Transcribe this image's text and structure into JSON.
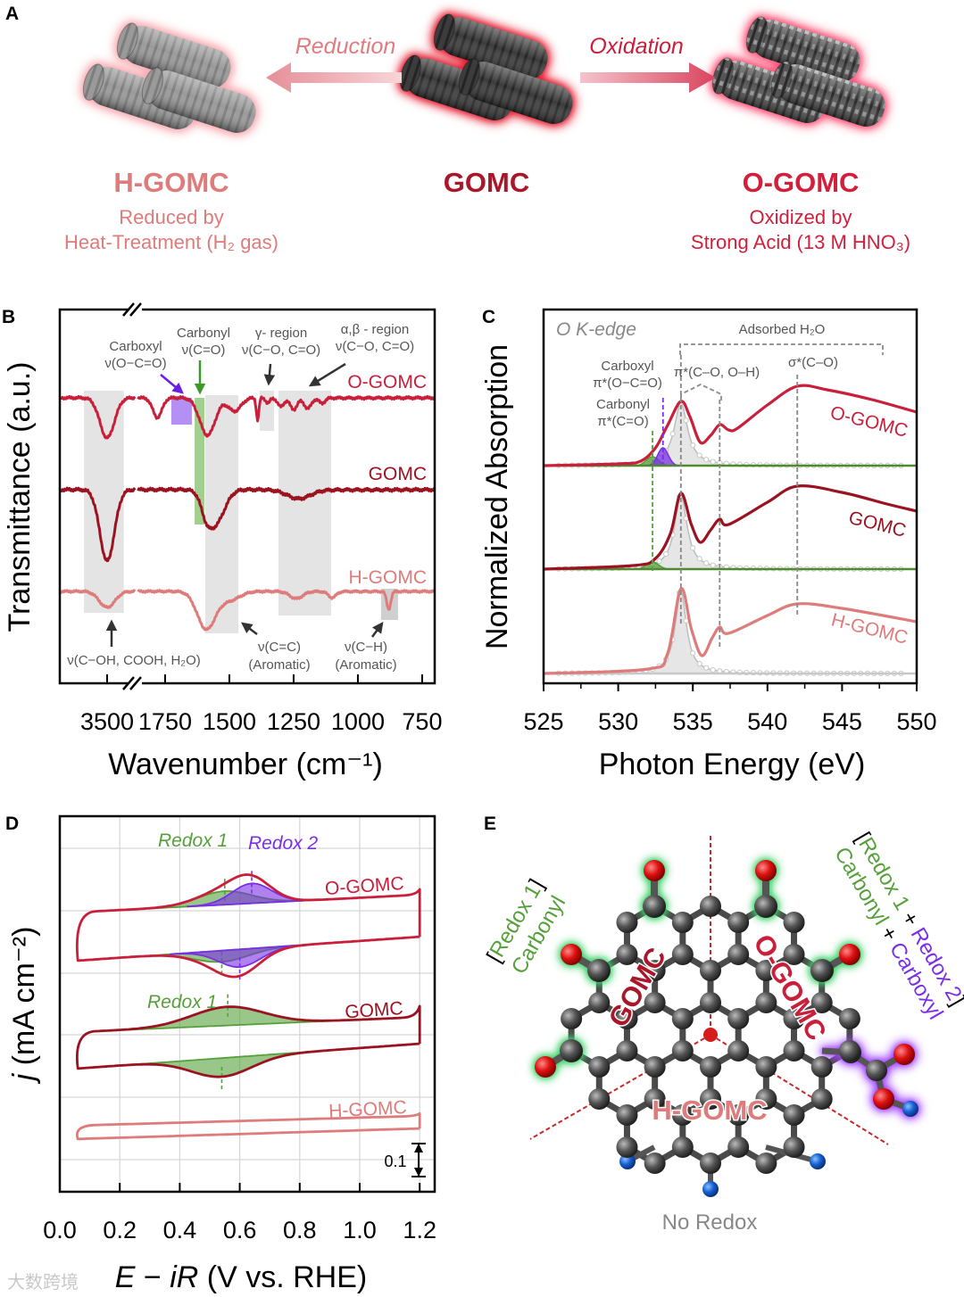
{
  "panel_labels": {
    "a": "A",
    "b": "B",
    "c": "C",
    "d": "D",
    "e": "E"
  },
  "colors": {
    "o_gomc": "#c91f3b",
    "gomc": "#9b1320",
    "h_gomc": "#de7b7b",
    "carbonyl": "#55a03a",
    "carboxyl": "#7a2ee6",
    "band": "#e4e4e4",
    "annotation": "#555555"
  },
  "panel_a": {
    "reduction_label": "Reduction",
    "oxidation_label": "Oxidation",
    "materials": [
      {
        "name": "H-GOMC",
        "desc1": "Reduced by",
        "desc2": "Heat-Treatment (H₂ gas)"
      },
      {
        "name": "GOMC"
      },
      {
        "name": "O-GOMC",
        "desc1": "Oxidized by",
        "desc2": "Strong Acid (13 M HNO₃)"
      }
    ]
  },
  "chart_data": [
    {
      "panel": "B",
      "type": "line",
      "xlabel": "Wavenumber (cm⁻¹)",
      "ylabel": "Transmittance (a.u.)",
      "x_segments": [
        [
          3680,
          3390
        ],
        [
          1855,
          700
        ]
      ],
      "x_ticks": [
        "3500",
        "1750",
        "1500",
        "1250",
        "1000",
        "750"
      ],
      "x_tick_values": [
        3500,
        1750,
        1500,
        1250,
        1000,
        750
      ],
      "series": [
        {
          "name": "O-GOMC",
          "offset": 3.2,
          "noise": 0.01,
          "peaks": [
            [
              3500,
              0.45,
              28
            ],
            [
              1780,
              0.22,
              18
            ],
            [
              1585,
              0.42,
              30
            ],
            [
              1480,
              0.15,
              25
            ],
            [
              1390,
              0.25,
              5
            ],
            [
              1350,
              0.06,
              8
            ],
            [
              1300,
              0.1,
              12
            ],
            [
              1250,
              0.13,
              14
            ],
            [
              1195,
              0.12,
              14
            ],
            [
              1140,
              0.06,
              12
            ]
          ]
        },
        {
          "name": "GOMC",
          "offset": 2.17,
          "noise": 0.012,
          "peaks": [
            [
              3500,
              0.8,
              28
            ],
            [
              1590,
              0.15,
              20
            ],
            [
              1555,
              0.38,
              35
            ],
            [
              1230,
              0.1,
              45
            ]
          ]
        },
        {
          "name": "H-GOMC",
          "offset": 1.03,
          "noise": 0.008,
          "peaks": [
            [
              3500,
              0.18,
              30
            ],
            [
              1590,
              0.42,
              35
            ],
            [
              1500,
              0.1,
              40
            ],
            [
              1240,
              0.08,
              25
            ],
            [
              1100,
              0.07,
              15
            ],
            [
              880,
              0.2,
              8
            ]
          ]
        }
      ],
      "bands": [
        {
          "name": "OH",
          "range": [
            3590,
            3435
          ],
          "ylim": [
            0.79,
            3.28
          ],
          "kind": "gray"
        },
        {
          "name": "CC",
          "range": [
            1594,
            1465
          ],
          "ylim": [
            0.56,
            3.23
          ],
          "kind": "gray"
        },
        {
          "name": "gamma",
          "range": [
            1382,
            1326
          ],
          "ylim": [
            2.83,
            3.28
          ],
          "kind": "gray"
        },
        {
          "name": "alpha-beta",
          "range": [
            1309,
            1104
          ],
          "ylim": [
            0.76,
            3.28
          ],
          "kind": "gray"
        },
        {
          "name": "CH",
          "range": [
            910,
            844
          ],
          "ylim": [
            0.71,
            1.06
          ],
          "kind": "darkgray"
        },
        {
          "name": "carboxyl",
          "range": [
            1726,
            1646
          ],
          "ylim": [
            2.9,
            3.2
          ],
          "kind": "carboxyl"
        },
        {
          "name": "carbonyl",
          "range": [
            1635,
            1597
          ],
          "ylim": [
            1.78,
            3.2
          ],
          "kind": "carbonyl"
        }
      ],
      "annotations": {
        "carboxyl": [
          "Carboxyl",
          "ν(O−C=O)"
        ],
        "carbonyl": [
          "Carbonyl",
          "ν(C=O)"
        ],
        "gamma": [
          "γ- region",
          "ν(C−O, C=O)"
        ],
        "alphabeta": [
          "α,β - region",
          "ν(C−O, C=O)"
        ],
        "oh": "ν(C−OH, COOH, H₂O)",
        "cc": [
          "ν(C=C)",
          "(Aromatic)"
        ],
        "ch": [
          "ν(C−H)",
          "(Aromatic)"
        ]
      }
    },
    {
      "panel": "C",
      "type": "line",
      "xlabel": "Photon Energy (eV)",
      "ylabel": "Normalized Absorption",
      "xlim": [
        525,
        550
      ],
      "x_ticks": [
        "525",
        "530",
        "535",
        "540",
        "545",
        "550"
      ],
      "x_tick_values": [
        525,
        530,
        535,
        540,
        545,
        550
      ],
      "inset_label": "O K-edge",
      "series": [
        {
          "name": "O-GOMC",
          "offset": 2.44,
          "points": [
            [
              525,
              0
            ],
            [
              530,
              0.02
            ],
            [
              531.5,
              0.05
            ],
            [
              532.5,
              0.2
            ],
            [
              533.3,
              0.45
            ],
            [
              534.2,
              0.72
            ],
            [
              534.8,
              0.55
            ],
            [
              535.5,
              0.26
            ],
            [
              536.2,
              0.34
            ],
            [
              536.8,
              0.46
            ],
            [
              537.4,
              0.4
            ],
            [
              538,
              0.42
            ],
            [
              540,
              0.68
            ],
            [
              542,
              0.89
            ],
            [
              544,
              0.85
            ],
            [
              547,
              0.74
            ],
            [
              550,
              0.6
            ]
          ],
          "fit_main": [
            534.2,
            0.7,
            0.55
          ],
          "fit_carbonyl": [
            532.3,
            0.1,
            0.4
          ],
          "fit_carboxyl": [
            533,
            0.2,
            0.35
          ]
        },
        {
          "name": "GOMC",
          "offset": 1.28,
          "points": [
            [
              525,
              0
            ],
            [
              531,
              0.04
            ],
            [
              532.5,
              0.12
            ],
            [
              533.5,
              0.4
            ],
            [
              534.2,
              0.85
            ],
            [
              534.9,
              0.5
            ],
            [
              535.5,
              0.3
            ],
            [
              536.2,
              0.44
            ],
            [
              536.8,
              0.56
            ],
            [
              537.4,
              0.5
            ],
            [
              540,
              0.75
            ],
            [
              542,
              0.93
            ],
            [
              545,
              0.86
            ],
            [
              548,
              0.73
            ],
            [
              550,
              0.65
            ]
          ],
          "fit_main": [
            534.2,
            0.83,
            0.5
          ],
          "fit_carbonyl": [
            532.3,
            0.08,
            0.4
          ]
        },
        {
          "name": "H-GOMC",
          "offset": 0.11,
          "points": [
            [
              525,
              0
            ],
            [
              532,
              0.05
            ],
            [
              533.3,
              0.22
            ],
            [
              534.2,
              0.95
            ],
            [
              534.9,
              0.5
            ],
            [
              535.6,
              0.2
            ],
            [
              536.3,
              0.4
            ],
            [
              536.8,
              0.52
            ],
            [
              537.4,
              0.45
            ],
            [
              540,
              0.65
            ],
            [
              542,
              0.78
            ],
            [
              545,
              0.73
            ],
            [
              550,
              0.58
            ]
          ],
          "fit_main": [
            534.2,
            0.93,
            0.45
          ]
        }
      ],
      "markers_eV": {
        "carbonyl": 532.3,
        "carboxyl": 533,
        "pi_star": 534.2,
        "pi_star_2": 536.8,
        "sigma_star": 542
      },
      "annotations": {
        "adsorbed": "Adsorbed H₂O",
        "carboxyl": [
          "Carboxyl",
          "π*(O−C=O)"
        ],
        "carbonyl": [
          "Carbonyl",
          "π*(C=O)"
        ],
        "pi_star": "π*(C–O, O–H)",
        "sigma_star": "σ*(C–O)"
      }
    },
    {
      "panel": "D",
      "type": "line",
      "xlabel_parts": [
        "E",
        " − ",
        "iR",
        " (V vs. RHE)"
      ],
      "ylabel_parts": [
        "j",
        " (mA cm⁻²)"
      ],
      "xlim": [
        0,
        1.25
      ],
      "x_ticks": [
        "0.0",
        "0.2",
        "0.4",
        "0.6",
        "0.8",
        "1.0",
        "1.2"
      ],
      "x_tick_values": [
        0,
        0.2,
        0.4,
        0.6,
        0.8,
        1.0,
        1.2
      ],
      "grid": true,
      "scale_bar": "0.1",
      "series": [
        {
          "name": "O-GOMC",
          "upper": [
            0.87,
            0.925
          ],
          "top": 0.942,
          "lower": [
            0.719,
            0.794
          ],
          "anodic": [
            {
              "type": "Redox 1",
              "E": 0.55,
              "j": 0.042,
              "sigma": 0.09
            },
            {
              "type": "Redox 2",
              "E": 0.64,
              "j": 0.062,
              "sigma": 0.065
            }
          ],
          "cathodic": [
            {
              "type": "Redox 1",
              "E": 0.54,
              "j": 0.035,
              "sigma": 0.09
            },
            {
              "type": "Redox 2",
              "E": 0.6,
              "j": 0.055,
              "sigma": 0.07
            }
          ]
        },
        {
          "name": "GOMC",
          "upper": [
            0.497,
            0.544
          ],
          "top": 0.578,
          "lower": [
            0.383,
            0.461
          ],
          "anodic": [
            {
              "type": "Redox 1",
              "E": 0.56,
              "j": 0.058,
              "sigma": 0.12
            }
          ],
          "cathodic": [
            {
              "type": "Redox 1",
              "E": 0.54,
              "j": 0.058,
              "sigma": 0.1
            }
          ]
        },
        {
          "name": "H-GOMC",
          "upper": [
            0.206,
            0.236
          ],
          "top": 0.244,
          "lower": [
            0.164,
            0.197
          ],
          "anodic": [],
          "cathodic": []
        }
      ],
      "annotations": {
        "redox1": "Redox 1",
        "redox2": "Redox 2"
      }
    }
  ],
  "panel_e": {
    "left_bracket": [
      "[",
      "Redox 1",
      "]"
    ],
    "left_group": "Carbonyl",
    "right_bracket": [
      "[",
      "Redox 1",
      " + ",
      "Redox 2",
      "]"
    ],
    "right_groups": [
      "Carbonyl",
      " + ",
      "Carboxyl"
    ],
    "region_labels": {
      "gomc": "GOMC",
      "o_gomc": "O-GOMC",
      "h_gomc": "H-GOMC"
    },
    "no_redox": "No Redox"
  },
  "watermark": "大数跨境"
}
